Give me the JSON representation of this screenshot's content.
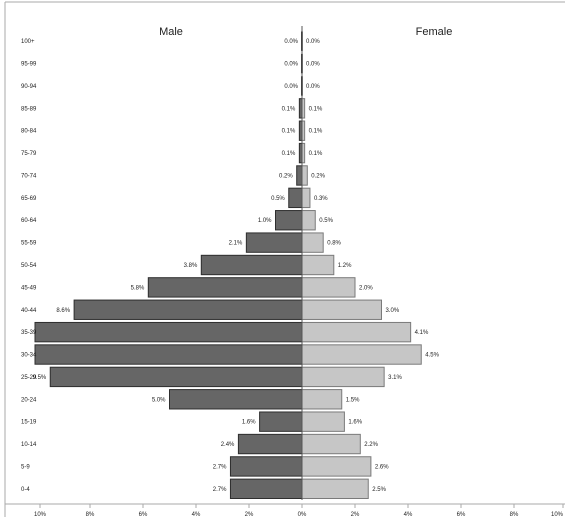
{
  "chart_data": {
    "type": "bar",
    "orientation": "horizontal",
    "layout": "population-pyramid",
    "categories": [
      "100+",
      "95-99",
      "90-94",
      "85-89",
      "80-84",
      "75-79",
      "70-74",
      "65-69",
      "60-64",
      "55-59",
      "50-54",
      "45-49",
      "40-44",
      "35-39",
      "30-34",
      "25-29",
      "20-24",
      "15-19",
      "10-14",
      "5-9",
      "0-4"
    ],
    "series": [
      {
        "name": "Male",
        "side": "left",
        "values": [
          0.0,
          0.0,
          0.0,
          0.1,
          0.1,
          0.1,
          0.2,
          0.5,
          1.0,
          2.1,
          3.8,
          5.8,
          8.6,
          10.5,
          11.0,
          9.5,
          5.0,
          1.6,
          2.4,
          2.7,
          2.7
        ],
        "labels": [
          "0.0%",
          "0.0%",
          "0.0%",
          "0.1%",
          "0.1%",
          "0.1%",
          "0.2%",
          "0.5%",
          "1.0%",
          "2.1%",
          "3.8%",
          "5.8%",
          "8.6%",
          "",
          "",
          "9.5%",
          "5.0%",
          "1.6%",
          "2.4%",
          "2.7%",
          "2.7%"
        ]
      },
      {
        "name": "Female",
        "side": "right",
        "values": [
          0.0,
          0.0,
          0.0,
          0.1,
          0.1,
          0.1,
          0.2,
          0.3,
          0.5,
          0.8,
          1.2,
          2.0,
          3.0,
          4.1,
          4.5,
          3.1,
          1.5,
          1.6,
          2.2,
          2.6,
          2.5
        ],
        "labels": [
          "0.0%",
          "0.0%",
          "0.0%",
          "0.1%",
          "0.1%",
          "0.1%",
          "0.2%",
          "0.3%",
          "0.5%",
          "0.8%",
          "1.2%",
          "2.0%",
          "3.0%",
          "4.1%",
          "4.5%",
          "3.1%",
          "1.5%",
          "1.6%",
          "2.2%",
          "2.6%",
          "2.5%"
        ]
      }
    ],
    "x_ticks": [
      "10%",
      "8%",
      "6%",
      "4%",
      "2%",
      "0%",
      "2%",
      "4%",
      "6%",
      "8%",
      "10%"
    ],
    "xlim": [
      -10,
      10
    ],
    "grid": false,
    "colors": {
      "male_fill": "#666666",
      "male_stroke": "#2e2e2e",
      "female_fill": "#c6c6c6",
      "female_stroke": "#7a7a7a",
      "axis": "#555555",
      "frame": "#aaaaaa",
      "text": "#222222"
    }
  }
}
